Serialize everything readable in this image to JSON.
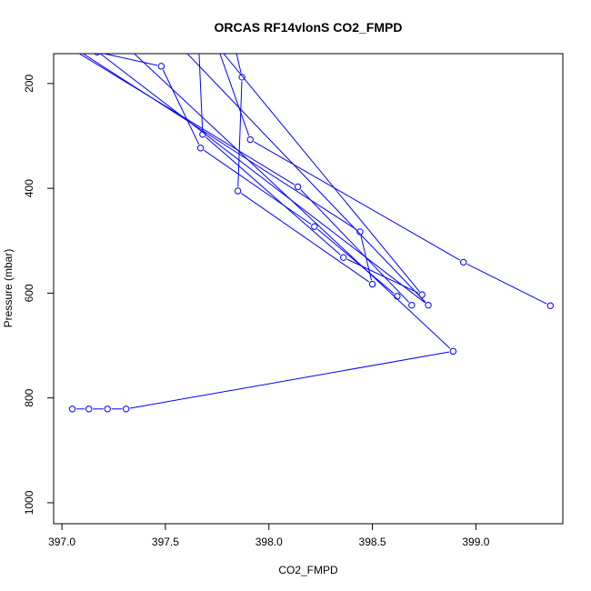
{
  "chart_data": {
    "type": "line",
    "title": "ORCAS RF14vlonS CO2_FMPD",
    "xlabel": "CO2_FMPD",
    "ylabel": "Pressure (mbar)",
    "xlim": [
      396.96,
      399.42
    ],
    "ylim": [
      1040,
      143
    ],
    "y_inverted": true,
    "grid": false,
    "x_ticks": [
      397.0,
      397.5,
      398.0,
      398.5,
      399.0
    ],
    "x_tick_labels": [
      "397.0",
      "397.5",
      "398.0",
      "398.5",
      "399.0"
    ],
    "y_ticks": [
      200,
      400,
      600,
      800,
      1000
    ],
    "y_tick_labels": [
      "200",
      "400",
      "600",
      "800",
      "1000"
    ],
    "line_color": "#0000ff",
    "series": [
      {
        "x": [
          397.17,
          397.48,
          397.67,
          398.22,
          398.62
        ],
        "y": [
          140,
          167,
          323,
          473,
          606
        ]
      },
      {
        "x": [
          396.98,
          398.14,
          398.69
        ],
        "y": [
          118,
          397,
          623
        ]
      },
      {
        "x": [
          397.83,
          397.87,
          397.85,
          398.5,
          398.44,
          396.98
        ],
        "y": [
          120,
          188,
          405,
          583,
          483,
          112
        ]
      },
      {
        "x": [
          397.66,
          397.68,
          398.36,
          398.74,
          397.75,
          397.91,
          398.94,
          399.36
        ],
        "y": [
          120,
          297,
          532,
          603,
          128,
          307,
          541,
          624
        ]
      },
      {
        "x": [
          397.55,
          398.77,
          397.04
        ],
        "y": [
          120,
          623,
          99
        ]
      },
      {
        "x": [
          397.23,
          398.89,
          397.31,
          397.22,
          397.13,
          397.05
        ],
        "y": [
          99,
          711,
          821,
          821,
          821,
          821
        ]
      }
    ]
  }
}
